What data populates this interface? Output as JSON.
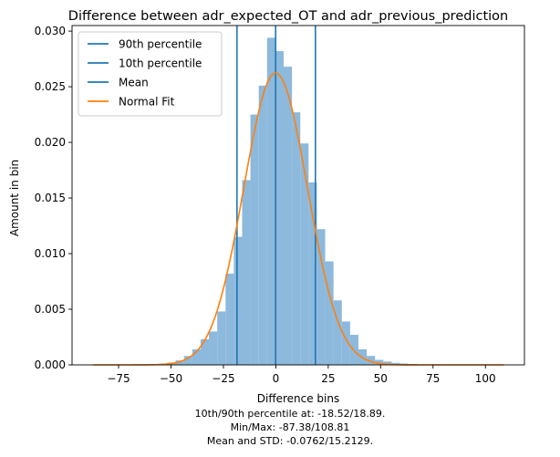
{
  "chart_data": {
    "type": "bar",
    "title": "Difference between adr_expected_OT and adr_previous_prediction",
    "xlabel": "Difference bins",
    "ylabel": "Amount in bin",
    "xlim": [
      -97.2,
      118.6
    ],
    "ylim": [
      0,
      0.0305
    ],
    "x_ticks": [
      -75,
      -50,
      -25,
      0,
      25,
      50,
      75,
      100
    ],
    "x_tick_labels": [
      "−75",
      "−50",
      "−25",
      "0",
      "25",
      "50",
      "75",
      "100"
    ],
    "y_ticks": [
      0,
      0.005,
      0.01,
      0.015,
      0.02,
      0.025,
      0.03
    ],
    "y_tick_labels": [
      "0.000",
      "0.005",
      "0.010",
      "0.015",
      "0.020",
      "0.025",
      "0.030"
    ],
    "histogram": {
      "color": "#8cb9dc",
      "bin_edges": [
        -87.38,
        -83.42,
        -79.45,
        -75.49,
        -71.53,
        -67.57,
        -63.6,
        -59.64,
        -55.68,
        -51.72,
        -47.76,
        -43.79,
        -39.83,
        -35.87,
        -31.91,
        -27.94,
        -23.98,
        -20.02,
        -16.06,
        -12.1,
        -8.13,
        -4.17,
        -0.21,
        3.75,
        7.71,
        11.68,
        15.64,
        19.6,
        23.56,
        27.52,
        31.49,
        35.45,
        39.41,
        43.37,
        47.34,
        51.3,
        55.26,
        59.22,
        63.18,
        67.15,
        71.11,
        75.07,
        79.03,
        83.0,
        86.96,
        90.92,
        94.88,
        98.84,
        102.81,
        106.77,
        108.81
      ],
      "values": [
        1e-05,
        1e-05,
        1e-05,
        1e-05,
        1e-05,
        2e-05,
        3e-05,
        5e-05,
        0.0001,
        0.0002,
        0.0004,
        0.0008,
        0.0014,
        0.0023,
        0.003,
        0.0048,
        0.0082,
        0.0115,
        0.0166,
        0.0225,
        0.0251,
        0.0294,
        0.0282,
        0.0268,
        0.0227,
        0.0199,
        0.0164,
        0.0122,
        0.0093,
        0.0058,
        0.0039,
        0.0027,
        0.0014,
        0.0008,
        0.00045,
        0.0003,
        0.00018,
        0.00012,
        8e-05,
        5e-05,
        4e-05,
        3e-05,
        2e-05,
        2e-05,
        1e-05,
        1e-05,
        1e-05,
        1e-05,
        1e-05,
        1e-05
      ]
    },
    "vlines": [
      {
        "name": "90th percentile",
        "x": 18.89,
        "color": "#1f77b4"
      },
      {
        "name": "10th percentile",
        "x": -18.52,
        "color": "#1f77b4"
      },
      {
        "name": "Mean",
        "x": -0.0762,
        "color": "#1f77b4"
      }
    ],
    "normal_fit": {
      "name": "Normal Fit",
      "color": "#ff7f0e",
      "mean": -0.0762,
      "std": 15.2129,
      "x_range": [
        -87.38,
        108.81
      ]
    },
    "legend": {
      "placement": "top-left",
      "entries": [
        {
          "label": "90th percentile",
          "color": "#1f77b4"
        },
        {
          "label": "10th percentile",
          "color": "#1f77b4"
        },
        {
          "label": "Mean",
          "color": "#1f77b4"
        },
        {
          "label": "Normal Fit",
          "color": "#ff7f0e"
        }
      ]
    },
    "annotation_lines": [
      "10th/90th percentile at: -18.52/18.89.",
      "Min/Max: -87.38/108.81",
      "Mean and STD: -0.0762/15.2129."
    ],
    "grid": false
  }
}
